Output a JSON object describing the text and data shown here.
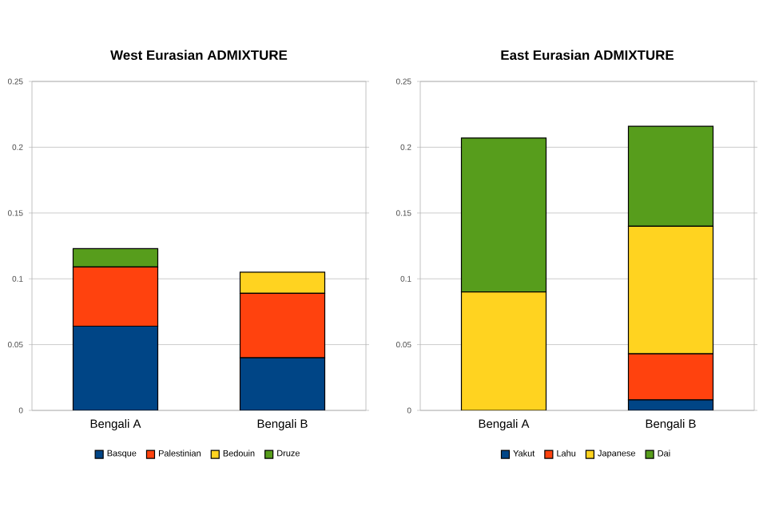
{
  "chart_data": [
    {
      "type": "bar",
      "title": "West Eurasian ADMIXTURE",
      "stacked": true,
      "categories": [
        "Bengali A",
        "Bengali B"
      ],
      "series": [
        {
          "name": "Basque",
          "color": "#004586",
          "values": [
            0.064,
            0.04
          ]
        },
        {
          "name": "Palestinian",
          "color": "#ff420e",
          "values": [
            0.045,
            0.049
          ]
        },
        {
          "name": "Bedouin",
          "color": "#ffd320",
          "values": [
            0,
            0.016
          ]
        },
        {
          "name": "Druze",
          "color": "#579d1c",
          "values": [
            0.014,
            0
          ]
        }
      ],
      "ylim": [
        0,
        0.25
      ],
      "yticks": [
        0,
        0.05,
        0.1,
        0.15,
        0.2,
        0.25
      ],
      "grid": "y",
      "legend": "bottom"
    },
    {
      "type": "bar",
      "title": "East Eurasian ADMIXTURE",
      "stacked": true,
      "categories": [
        "Bengali A",
        "Bengali B"
      ],
      "series": [
        {
          "name": "Yakut",
          "color": "#004586",
          "values": [
            0,
            0.008
          ]
        },
        {
          "name": "Lahu",
          "color": "#ff420e",
          "values": [
            0,
            0.035
          ]
        },
        {
          "name": "Japanese",
          "color": "#ffd320",
          "values": [
            0.09,
            0.097
          ]
        },
        {
          "name": "Dai",
          "color": "#579d1c",
          "values": [
            0.117,
            0.076
          ]
        }
      ],
      "ylim": [
        0,
        0.25
      ],
      "yticks": [
        0,
        0.05,
        0.1,
        0.15,
        0.2,
        0.25
      ],
      "grid": "y",
      "legend": "bottom"
    }
  ]
}
